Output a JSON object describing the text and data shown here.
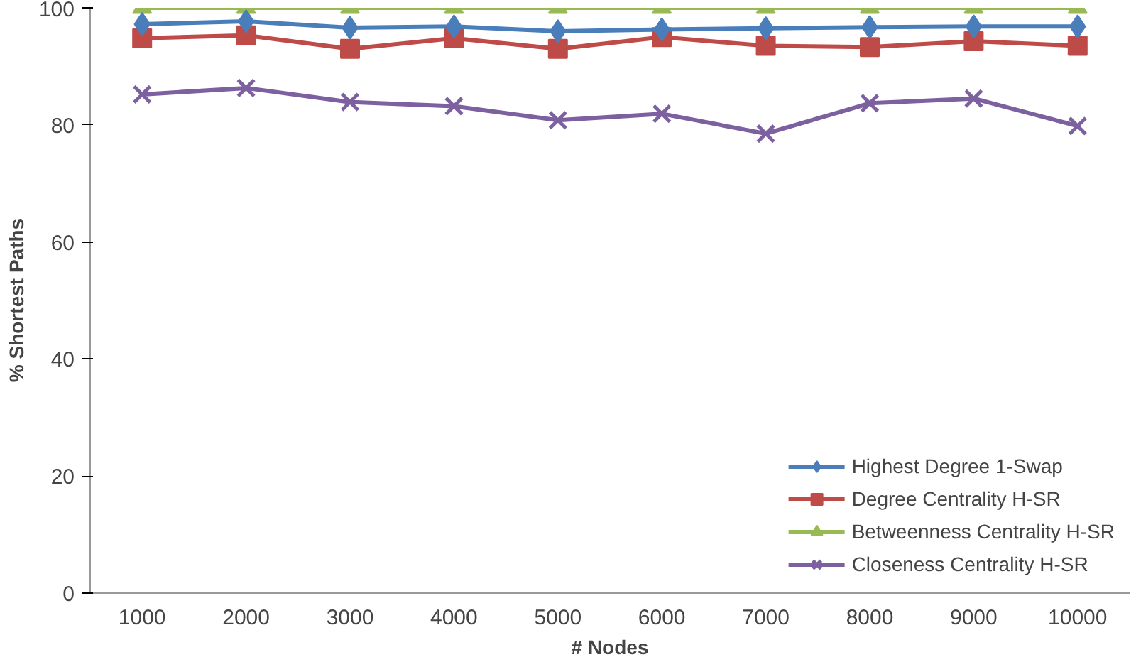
{
  "chart_data": {
    "type": "line",
    "xlabel": "# Nodes",
    "ylabel": "% Shortest Paths",
    "categories": [
      "1000",
      "2000",
      "3000",
      "4000",
      "5000",
      "6000",
      "7000",
      "8000",
      "9000",
      "10000"
    ],
    "ylim": [
      0,
      100
    ],
    "yticks": [
      0,
      20,
      40,
      60,
      80,
      100
    ],
    "grid": false,
    "legend": "bottom right",
    "series": [
      {
        "name": "Highest Degree 1-Swap",
        "color": "#4a7ebb",
        "marker": "diamond",
        "values": [
          97.2,
          97.7,
          96.6,
          96.8,
          96,
          96.3,
          96.5,
          96.7,
          96.8,
          96.8
        ]
      },
      {
        "name": "Degree Centrality H-SR",
        "color": "#be4b48",
        "marker": "square",
        "values": [
          94.8,
          95.3,
          93,
          94.8,
          93,
          95,
          93.5,
          93.3,
          94.3,
          93.5
        ]
      },
      {
        "name": "Betweenness Centrality H-SR",
        "color": "#98b954",
        "marker": "triangle",
        "values": [
          100,
          100,
          100,
          100,
          100,
          100,
          100,
          100,
          100,
          100
        ]
      },
      {
        "name": "Closeness Centrality H-SR",
        "color": "#7d60a0",
        "marker": "cross",
        "values": [
          85.2,
          86.3,
          83.9,
          83.2,
          80.8,
          81.9,
          78.5,
          83.7,
          84.5,
          79.8
        ]
      }
    ]
  }
}
